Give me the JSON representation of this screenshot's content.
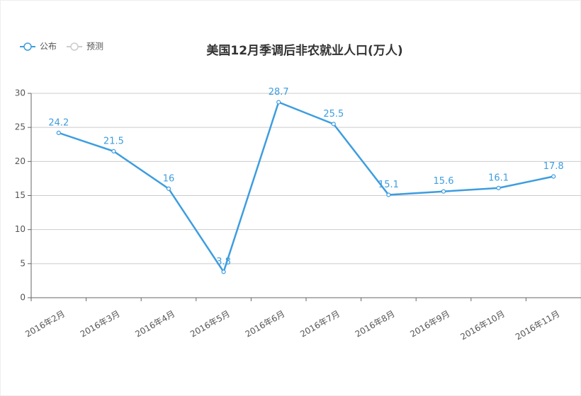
{
  "chart_data": {
    "type": "line",
    "title": "美国12月季调后非农就业人口(万人)",
    "categories": [
      "2016年2月",
      "2016年3月",
      "2016年4月",
      "2016年5月",
      "2016年6月",
      "2016年7月",
      "2016年8月",
      "2016年9月",
      "2016年10月",
      "2016年11月"
    ],
    "series": [
      {
        "name": "公布",
        "color": "#3d9ddf",
        "values": [
          24.2,
          21.5,
          16,
          3.8,
          28.7,
          25.5,
          15.1,
          15.6,
          16.1,
          17.8
        ]
      },
      {
        "name": "预测",
        "color": "#cccccc",
        "values": [
          null,
          null,
          null,
          null,
          null,
          null,
          null,
          null,
          null,
          null
        ]
      }
    ],
    "ylim": [
      0,
      30
    ],
    "yticks": [
      0,
      5,
      10,
      15,
      20,
      25,
      30
    ],
    "grid": true,
    "legend": "top-left"
  }
}
